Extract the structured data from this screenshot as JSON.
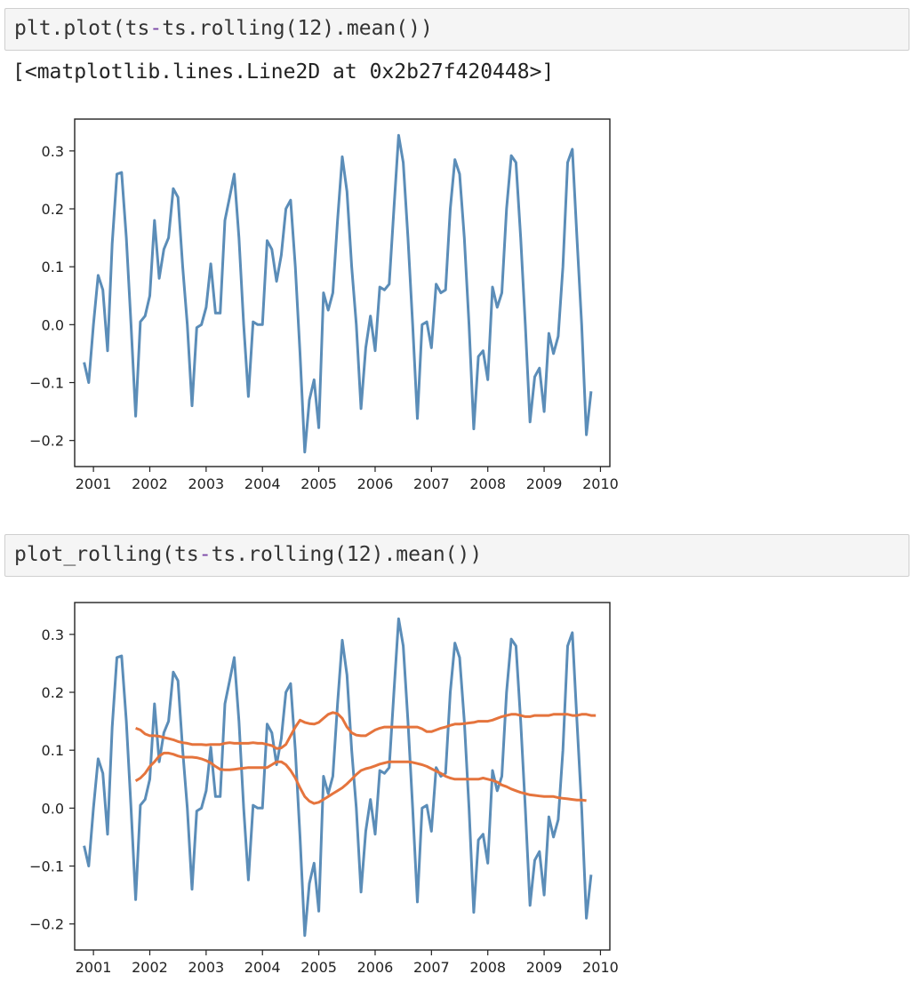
{
  "cells": [
    {
      "code": "plt.plot(ts-ts.rolling(12).mean())",
      "output_text": "[<matplotlib.lines.Line2D at 0x2b27f420448>]"
    },
    {
      "code": "plot_rolling(ts-ts.rolling(12).mean())"
    }
  ],
  "colors": {
    "blue": "#5b8db8",
    "orange": "#e5743d",
    "code_operator": "#7a46a6"
  },
  "chart_data": [
    {
      "type": "line",
      "x_ticks": [
        "2001",
        "2002",
        "2003",
        "2004",
        "2005",
        "2006",
        "2007",
        "2008",
        "2009",
        "2010"
      ],
      "y_ticks": [
        "0.3",
        "0.2",
        "0.1",
        "0.0",
        "−0.1",
        "−0.2"
      ],
      "xlim": [
        "2000-09",
        "2010-03"
      ],
      "ylim": [
        -0.245,
        0.355
      ],
      "series": [
        {
          "color": "blue",
          "x_start": "2000-11",
          "x_step_months": 1,
          "values": [
            -0.065,
            -0.1,
            0.0,
            0.085,
            0.06,
            -0.045,
            0.14,
            0.26,
            0.263,
            0.15,
            0.0,
            -0.158,
            0.005,
            0.015,
            0.05,
            0.18,
            0.08,
            0.13,
            0.15,
            0.235,
            0.22,
            0.1,
            0.0,
            -0.14,
            -0.005,
            0.0,
            0.03,
            0.105,
            0.02,
            0.02,
            0.18,
            0.22,
            0.26,
            0.15,
            0.0,
            -0.124,
            0.005,
            0.0,
            0.0,
            0.145,
            0.13,
            0.075,
            0.12,
            0.2,
            0.215,
            0.1,
            -0.05,
            -0.22,
            -0.13,
            -0.095,
            -0.178,
            0.055,
            0.025,
            0.055,
            0.18,
            0.29,
            0.23,
            0.1,
            0.0,
            -0.145,
            -0.04,
            0.015,
            -0.045,
            0.065,
            0.06,
            0.07,
            0.2,
            0.327,
            0.28,
            0.15,
            0.0,
            -0.162,
            0.0,
            0.005,
            -0.04,
            0.07,
            0.055,
            0.06,
            0.2,
            0.285,
            0.26,
            0.15,
            0.0,
            -0.18,
            -0.055,
            -0.045,
            -0.095,
            0.065,
            0.03,
            0.055,
            0.2,
            0.292,
            0.28,
            0.15,
            0.0,
            -0.168,
            -0.09,
            -0.075,
            -0.15,
            -0.015,
            -0.05,
            -0.02,
            0.1,
            0.28,
            0.303,
            0.15,
            0.0,
            -0.19,
            -0.115
          ]
        }
      ]
    },
    {
      "type": "line",
      "x_ticks": [
        "2001",
        "2002",
        "2003",
        "2004",
        "2005",
        "2006",
        "2007",
        "2008",
        "2009",
        "2010"
      ],
      "y_ticks": [
        "0.3",
        "0.2",
        "0.1",
        "0.0",
        "−0.1",
        "−0.2"
      ],
      "xlim": [
        "2000-09",
        "2010-03"
      ],
      "ylim": [
        -0.245,
        0.355
      ],
      "series": [
        {
          "color": "blue",
          "x_start": "2000-11",
          "x_step_months": 1,
          "values": [
            -0.065,
            -0.1,
            0.0,
            0.085,
            0.06,
            -0.045,
            0.14,
            0.26,
            0.263,
            0.15,
            0.0,
            -0.158,
            0.005,
            0.015,
            0.05,
            0.18,
            0.08,
            0.13,
            0.15,
            0.235,
            0.22,
            0.1,
            0.0,
            -0.14,
            -0.005,
            0.0,
            0.03,
            0.105,
            0.02,
            0.02,
            0.18,
            0.22,
            0.26,
            0.15,
            0.0,
            -0.124,
            0.005,
            0.0,
            0.0,
            0.145,
            0.13,
            0.075,
            0.12,
            0.2,
            0.215,
            0.1,
            -0.05,
            -0.22,
            -0.13,
            -0.095,
            -0.178,
            0.055,
            0.025,
            0.055,
            0.18,
            0.29,
            0.23,
            0.1,
            0.0,
            -0.145,
            -0.04,
            0.015,
            -0.045,
            0.065,
            0.06,
            0.07,
            0.2,
            0.327,
            0.28,
            0.15,
            0.0,
            -0.162,
            0.0,
            0.005,
            -0.04,
            0.07,
            0.055,
            0.06,
            0.2,
            0.285,
            0.26,
            0.15,
            0.0,
            -0.18,
            -0.055,
            -0.045,
            -0.095,
            0.065,
            0.03,
            0.055,
            0.2,
            0.292,
            0.28,
            0.15,
            0.0,
            -0.168,
            -0.09,
            -0.075,
            -0.15,
            -0.015,
            -0.05,
            -0.02,
            0.1,
            0.28,
            0.303,
            0.15,
            0.0,
            -0.19,
            -0.115
          ]
        },
        {
          "color": "orange",
          "x_start": "2001-10",
          "x_step_months": 1,
          "values": [
            0.138,
            0.135,
            0.128,
            0.125,
            0.125,
            0.124,
            0.122,
            0.12,
            0.118,
            0.115,
            0.113,
            0.112,
            0.11,
            0.11,
            0.11,
            0.109,
            0.11,
            0.11,
            0.11,
            0.112,
            0.113,
            0.112,
            0.112,
            0.112,
            0.112,
            0.113,
            0.112,
            0.112,
            0.11,
            0.108,
            0.103,
            0.104,
            0.11,
            0.125,
            0.14,
            0.152,
            0.148,
            0.146,
            0.145,
            0.148,
            0.155,
            0.162,
            0.165,
            0.163,
            0.155,
            0.14,
            0.13,
            0.126,
            0.125,
            0.125,
            0.13,
            0.135,
            0.138,
            0.14,
            0.14,
            0.14,
            0.14,
            0.14,
            0.14,
            0.14,
            0.14,
            0.137,
            0.132,
            0.132,
            0.135,
            0.138,
            0.14,
            0.143,
            0.145,
            0.145,
            0.146,
            0.147,
            0.148,
            0.15,
            0.15,
            0.15,
            0.152,
            0.155,
            0.158,
            0.16,
            0.162,
            0.162,
            0.16,
            0.158,
            0.158,
            0.16,
            0.16,
            0.16,
            0.16,
            0.162,
            0.162,
            0.162,
            0.162,
            0.16,
            0.16,
            0.162,
            0.162,
            0.16,
            0.16
          ]
        },
        {
          "color": "orange",
          "x_start": "2001-10",
          "x_step_months": 1,
          "values": [
            0.047,
            0.052,
            0.06,
            0.072,
            0.08,
            0.09,
            0.095,
            0.095,
            0.093,
            0.09,
            0.088,
            0.088,
            0.088,
            0.087,
            0.085,
            0.082,
            0.078,
            0.072,
            0.067,
            0.066,
            0.066,
            0.067,
            0.068,
            0.069,
            0.07,
            0.07,
            0.07,
            0.07,
            0.07,
            0.075,
            0.08,
            0.08,
            0.075,
            0.065,
            0.052,
            0.035,
            0.02,
            0.012,
            0.008,
            0.01,
            0.015,
            0.02,
            0.025,
            0.03,
            0.035,
            0.042,
            0.05,
            0.058,
            0.065,
            0.068,
            0.07,
            0.073,
            0.076,
            0.078,
            0.08,
            0.08,
            0.08,
            0.08,
            0.08,
            0.079,
            0.077,
            0.075,
            0.072,
            0.068,
            0.064,
            0.06,
            0.055,
            0.052,
            0.05,
            0.05,
            0.05,
            0.05,
            0.05,
            0.05,
            0.052,
            0.05,
            0.048,
            0.045,
            0.04,
            0.037,
            0.033,
            0.03,
            0.027,
            0.025,
            0.023,
            0.022,
            0.021,
            0.02,
            0.02,
            0.02,
            0.018,
            0.017,
            0.016,
            0.015,
            0.014,
            0.014,
            0.013
          ]
        }
      ]
    }
  ]
}
